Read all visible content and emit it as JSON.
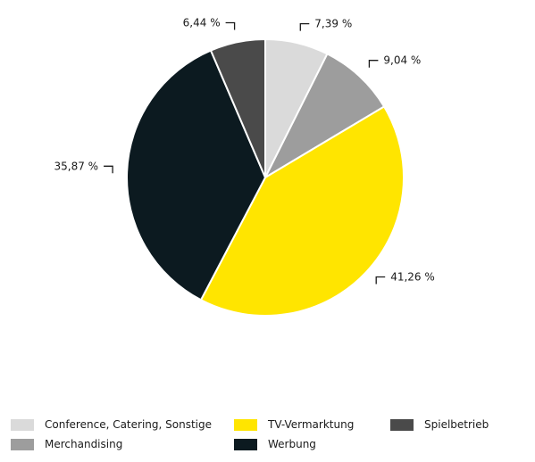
{
  "chart_data": {
    "type": "pie",
    "slices": [
      {
        "name": "Conference, Catering, Sonstige",
        "value": 7.39,
        "label": "7,39 %",
        "color": "#dadada"
      },
      {
        "name": "Merchandising",
        "value": 9.04,
        "label": "9,04 %",
        "color": "#9d9d9d"
      },
      {
        "name": "TV-Vermarktung",
        "value": 41.26,
        "label": "41,26 %",
        "color": "#ffe500"
      },
      {
        "name": "Werbung",
        "value": 35.87,
        "label": "35,87 %",
        "color": "#0c1a20"
      },
      {
        "name": "Spielbetrieb",
        "value": 6.44,
        "label": "6,44 %",
        "color": "#4a4a4a"
      }
    ],
    "start": "top",
    "direction": "clockwise",
    "legend_position": "bottom"
  }
}
